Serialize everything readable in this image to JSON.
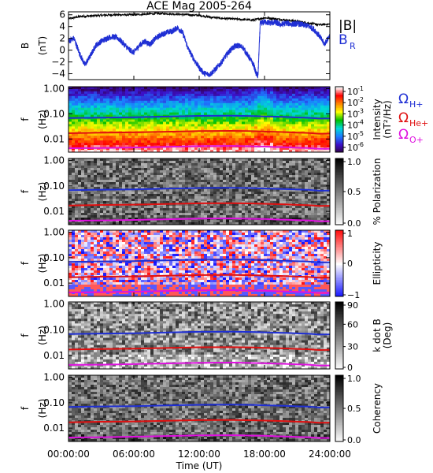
{
  "chart_data": [
    {
      "type": "line",
      "title": "ACE Mag 2005-264",
      "ylabel": "B",
      "yunit": "(nT)",
      "ylim": [
        -5,
        6.5
      ],
      "yticks": [
        -4,
        -2,
        0,
        2,
        4,
        6
      ],
      "series": [
        {
          "name": "|B|",
          "color": "#000000",
          "x": [
            0,
            1,
            2,
            3,
            4,
            5,
            6,
            7,
            8,
            9,
            10,
            11,
            12,
            13,
            14,
            15,
            16,
            17,
            18,
            19,
            20,
            21,
            22,
            23,
            24
          ],
          "y": [
            5.3,
            5.7,
            5.8,
            5.9,
            6.0,
            6.0,
            6.0,
            6.1,
            6.2,
            6.2,
            6.1,
            6.0,
            5.9,
            5.6,
            5.4,
            5.3,
            5.2,
            5.1,
            5.5,
            5.3,
            5.1,
            4.9,
            4.6,
            4.3,
            4.4
          ]
        },
        {
          "name": "B",
          "name_sub": "R",
          "color": "#1f2fd4",
          "x": [
            0,
            0.5,
            1,
            1.5,
            2,
            2.5,
            3,
            3.5,
            4,
            4.5,
            5,
            5.5,
            6,
            6.5,
            7,
            7.5,
            8,
            8.5,
            9,
            9.5,
            10,
            10.5,
            11,
            11.5,
            12,
            12.5,
            13,
            13.5,
            14,
            14.5,
            15,
            15.5,
            16,
            16.5,
            17,
            17.2,
            17.4,
            17.6,
            18,
            18.5,
            19,
            19.5,
            20,
            20.5,
            21,
            21.5,
            22,
            22.5,
            23,
            23.5,
            24
          ],
          "y": [
            1.5,
            2.0,
            -0.5,
            -2.5,
            -1.0,
            0.8,
            1.5,
            2.0,
            2.3,
            2.1,
            1.2,
            0.2,
            -0.4,
            0.8,
            1.5,
            1.0,
            2.0,
            2.6,
            3.0,
            3.2,
            3.8,
            2.9,
            0.2,
            -1.5,
            -3.0,
            -4.0,
            -4.1,
            -3.2,
            -2.2,
            -0.8,
            0.3,
            0.8,
            0.5,
            -1.0,
            -2.5,
            -3.8,
            -4.4,
            4.5,
            4.8,
            4.6,
            4.7,
            4.3,
            4.6,
            4.4,
            4.5,
            4.3,
            4.1,
            3.6,
            2.5,
            1.0,
            2.5
          ]
        }
      ]
    },
    {
      "type": "heatmap",
      "name": "Intensity",
      "ylabel": "f",
      "yunit": "(Hz)",
      "cbar_label": "Intensity",
      "cbar_unit": "(nT²/Hz)",
      "cbar_ticks": [
        "10",
        "10",
        "10",
        "10",
        "10",
        "10"
      ],
      "cbar_tick_exponents": [
        "-1",
        "-2",
        "-3",
        "-4",
        "-5",
        "-6"
      ],
      "cbar_scale": "log",
      "cbar_range": [
        1e-06,
        0.1
      ],
      "colors": [
        "#300040",
        "#3c10c8",
        "#1b7cff",
        "#00d8d8",
        "#00c000",
        "#ffff00",
        "#ff8800",
        "#ff0000",
        "#ffffff"
      ],
      "ylim": [
        0.003,
        1.2
      ],
      "yticks": [
        0.01,
        0.1,
        1.0
      ],
      "ytick_labels": [
        "0.01",
        "0.10",
        "1.00"
      ]
    },
    {
      "type": "heatmap",
      "name": "Polarization",
      "ylabel": "f",
      "yunit": "(Hz)",
      "cbar_label": "% Polarization",
      "cbar_ticks": [
        "1.0",
        "0.5",
        "0.0"
      ],
      "cbar_range": [
        0,
        1
      ],
      "colors": [
        "#ffffff",
        "#000000"
      ],
      "ylim": [
        0.003,
        1.2
      ],
      "yticks": [
        0.01,
        0.1,
        1.0
      ],
      "ytick_labels": [
        "0.01",
        "0.10",
        "1.00"
      ]
    },
    {
      "type": "heatmap",
      "name": "Ellipticity",
      "ylabel": "f",
      "yunit": "(Hz)",
      "cbar_label": "Ellipticity",
      "cbar_ticks": [
        "1",
        "0",
        "−1"
      ],
      "cbar_range": [
        -1,
        1
      ],
      "colors": [
        "#1010ff",
        "#ffffff",
        "#ff1010"
      ],
      "ylim": [
        0.003,
        1.2
      ],
      "yticks": [
        0.01,
        0.1,
        1.0
      ],
      "ytick_labels": [
        "0.01",
        "0.10",
        "1.00"
      ]
    },
    {
      "type": "heatmap",
      "name": "kdotB",
      "ylabel": "f",
      "yunit": "(Hz)",
      "cbar_label": "k dot B",
      "cbar_unit": "(Deg)",
      "cbar_ticks": [
        "90",
        "60",
        "30",
        "0"
      ],
      "cbar_range": [
        0,
        90
      ],
      "colors": [
        "#ffffff",
        "#000000"
      ],
      "ylim": [
        0.003,
        1.2
      ],
      "yticks": [
        0.01,
        0.1,
        1.0
      ],
      "ytick_labels": [
        "0.01",
        "0.10",
        "1.00"
      ]
    },
    {
      "type": "heatmap",
      "name": "Coherency",
      "ylabel": "f",
      "yunit": "(Hz)",
      "cbar_label": "Coherency",
      "cbar_ticks": [
        "1.0",
        "0.5",
        "0.0"
      ],
      "cbar_range": [
        0,
        1
      ],
      "colors": [
        "#ffffff",
        "#000000"
      ],
      "ylim": [
        0.003,
        1.2
      ],
      "yticks": [
        0.01,
        0.1,
        1.0
      ],
      "ytick_labels": [
        "0.01",
        "0.10",
        "1.00"
      ]
    }
  ],
  "gyro_lines": [
    {
      "name": "Ω",
      "name_sub": "H+",
      "color": "#1f2fd4",
      "x": [
        0,
        3,
        6,
        9,
        12,
        15,
        17,
        18,
        19,
        20,
        21,
        22,
        23,
        24
      ],
      "y": [
        0.068,
        0.071,
        0.073,
        0.078,
        0.083,
        0.084,
        0.082,
        0.079,
        0.077,
        0.075,
        0.072,
        0.07,
        0.065,
        0.066
      ]
    },
    {
      "name": "Ω",
      "name_sub": "He+",
      "color": "#e01010",
      "x": [
        0,
        3,
        6,
        9,
        12,
        15,
        17,
        18,
        19,
        20,
        21,
        22,
        23,
        24
      ],
      "y": [
        0.017,
        0.0178,
        0.0183,
        0.0195,
        0.0208,
        0.021,
        0.0205,
        0.0198,
        0.0193,
        0.0188,
        0.018,
        0.0175,
        0.0163,
        0.0165
      ]
    },
    {
      "name": "Ω",
      "name_sub": "O+",
      "color": "#e010e0",
      "x": [
        0,
        3,
        6,
        9,
        12,
        15,
        17,
        18,
        19,
        20,
        21,
        22,
        23,
        24
      ],
      "y": [
        0.0043,
        0.0044,
        0.0046,
        0.0049,
        0.0052,
        0.0053,
        0.0051,
        0.005,
        0.0048,
        0.0047,
        0.0045,
        0.0044,
        0.0041,
        0.0041
      ]
    }
  ],
  "xaxis": {
    "label": "Time (UT)",
    "xlim": [
      0,
      24
    ],
    "ticks": [
      0,
      6,
      12,
      18,
      24
    ],
    "tick_labels": [
      "00:00:00",
      "06:00:00",
      "12:00:00",
      "18:00:00",
      "24:00:00"
    ]
  }
}
